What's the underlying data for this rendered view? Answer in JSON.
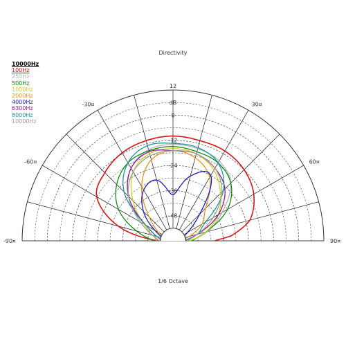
{
  "chart_data": {
    "type": "polar",
    "title": "Directivity",
    "bottom_label": "1/6 Octave",
    "radial_unit": "dB",
    "radial_ticks": [
      "12",
      "0",
      "-12",
      "-24",
      "-36",
      "-48"
    ],
    "radial_range": [
      -60,
      12
    ],
    "angle_labels": [
      "-90¤",
      "-60¤",
      "-30¤",
      "30¤",
      "60¤",
      "90¤"
    ],
    "angle_range": [
      -90,
      90
    ],
    "legend_header": "10000Hz",
    "series": [
      {
        "name": "100Hz",
        "color": "#d81414",
        "angles": [
          -90,
          -75,
          -60,
          -45,
          -30,
          -15,
          0,
          15,
          30,
          45,
          60,
          75,
          85,
          90
        ],
        "values": [
          -53,
          -33,
          -18,
          -14,
          -11.5,
          -10.5,
          -10,
          -10.5,
          -10.5,
          -12,
          -15.5,
          -22,
          -32,
          -40
        ]
      },
      {
        "name": "250Hz",
        "color": "#b4b4b4",
        "angles": [
          -90,
          -75,
          -60,
          -45,
          -30,
          -15,
          0,
          15,
          30,
          45,
          60,
          75,
          90
        ],
        "values": [
          -52,
          -50,
          -42,
          -30,
          -20,
          -15,
          -14,
          -14.5,
          -16,
          -21,
          -33,
          -43,
          -52
        ]
      },
      {
        "name": "500Hz",
        "color": "#0f8c0f",
        "angles": [
          -90,
          -75,
          -60,
          -45,
          -30,
          -15,
          0,
          15,
          30,
          45,
          60,
          75,
          90
        ],
        "values": [
          -51,
          -42,
          -30,
          -22,
          -17,
          -15.5,
          -15,
          -16,
          -17,
          -21,
          -30,
          -44,
          -51
        ]
      },
      {
        "name": "1000Hz",
        "color": "#cfd21e",
        "angles": [
          -90,
          -75,
          -60,
          -45,
          -30,
          -15,
          0,
          15,
          30,
          45,
          60,
          75,
          90
        ],
        "values": [
          -54,
          -50,
          -44,
          -33,
          -22,
          -17,
          -16,
          -17,
          -21,
          -28,
          -35,
          -44,
          -52
        ]
      },
      {
        "name": "2000Hz",
        "color": "#e8941a",
        "angles": [
          -90,
          -75,
          -60,
          -45,
          -30,
          -15,
          0,
          15,
          30,
          45,
          60,
          75,
          90
        ],
        "values": [
          -57,
          -56,
          -52,
          -44,
          -30,
          -20,
          -17,
          -19,
          -25,
          -38,
          -44,
          -52,
          -56
        ]
      },
      {
        "name": "4000Hz",
        "color": "#1a1ab4",
        "angles": [
          -90,
          -75,
          -60,
          -45,
          -30,
          -15,
          0,
          15,
          30,
          45,
          60,
          75,
          90
        ],
        "values": [
          -56,
          -55,
          -50,
          -40,
          -32,
          -30,
          -38,
          -28,
          -24,
          -42,
          -52,
          -55,
          -56
        ]
      },
      {
        "name": "6300Hz",
        "color": "#8c1a8c",
        "angles": [
          -90,
          -75,
          -60,
          -45,
          -30,
          -15,
          0,
          15,
          30,
          45,
          60,
          75,
          90
        ],
        "values": [
          -55,
          -52,
          -45,
          -30,
          -20,
          -16,
          -17,
          -17,
          -20,
          -25,
          -35,
          -48,
          -55
        ]
      },
      {
        "name": "8000Hz",
        "color": "#1a96a0",
        "angles": [
          -90,
          -75,
          -60,
          -45,
          -30,
          -15,
          0,
          15,
          30,
          45,
          60,
          75,
          90
        ],
        "values": [
          -55,
          -52,
          -45,
          -27,
          -17,
          -13,
          -13.5,
          -14,
          -17,
          -26,
          -42,
          -48,
          -55
        ]
      },
      {
        "name": "10000Hz",
        "color": "#a0a0a0",
        "angles": [
          -90,
          -75,
          -60,
          -45,
          -30,
          -15,
          0,
          15,
          30,
          45,
          60,
          75,
          90
        ],
        "values": [
          -53,
          -50,
          -42,
          -30,
          -22,
          -18,
          -17,
          -17,
          -20,
          -27,
          -38,
          -48,
          -53
        ]
      }
    ],
    "grid": true
  }
}
